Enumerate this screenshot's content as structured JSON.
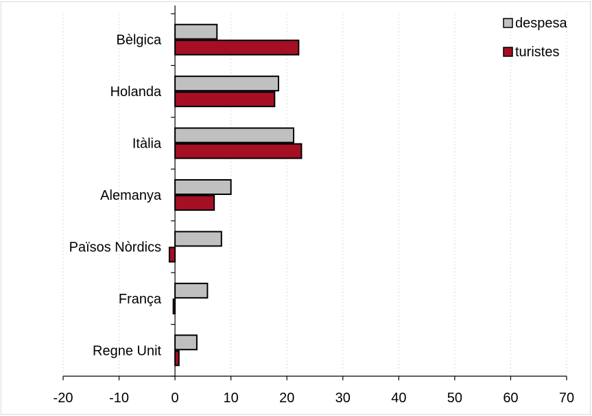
{
  "chart_data": {
    "type": "bar",
    "orientation": "horizontal",
    "categories": [
      "Bèlgica",
      "Holanda",
      "Itàlia",
      "Alemanya",
      "Països Nòrdics",
      "França",
      "Regne Unit"
    ],
    "series": [
      {
        "name": "despesa",
        "color": "#c0c0c0",
        "values": [
          7.5,
          18.5,
          21.2,
          10.0,
          8.3,
          5.8,
          3.9
        ]
      },
      {
        "name": "turistes",
        "color": "#a50f24",
        "values": [
          22.1,
          17.8,
          22.6,
          7.0,
          -1.0,
          -0.3,
          0.7
        ]
      }
    ],
    "xlim": [
      -20,
      70
    ],
    "xticks": [
      -20,
      -10,
      0,
      10,
      20,
      30,
      40,
      50,
      60,
      70
    ],
    "xgrid": true,
    "legend_position": "top-right"
  }
}
